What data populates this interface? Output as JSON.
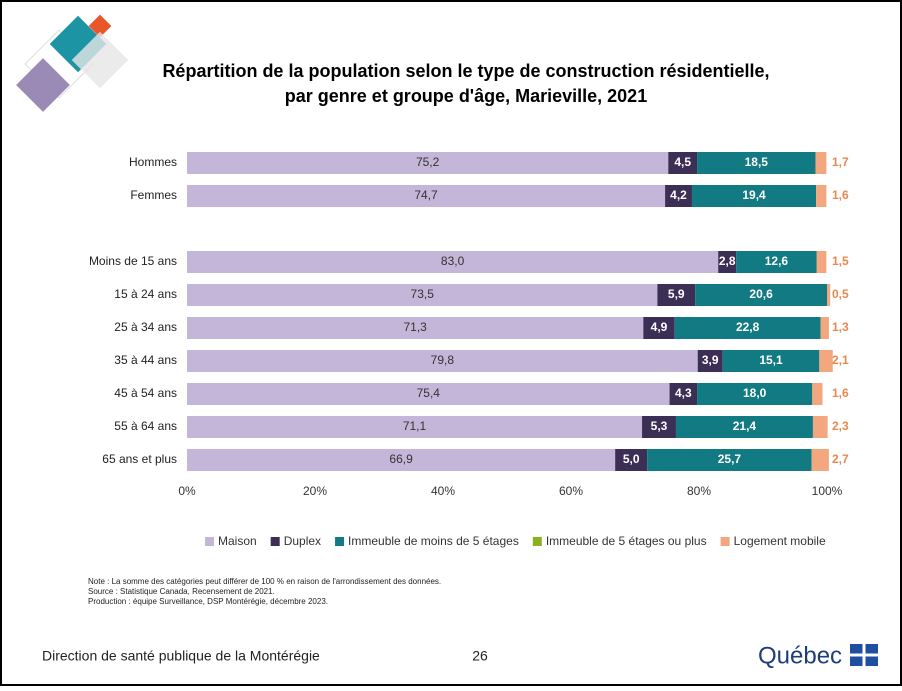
{
  "chart_data": {
    "type": "stacked-barh",
    "title": "Répartition de la population selon le type de construction résidentielle,",
    "subtitle": "par genre et groupe d'âge, Marieville, 2021",
    "categories": [
      "Hommes",
      "Femmes",
      null,
      "Moins de 15 ans",
      "15 à 24 ans",
      "25 à 34 ans",
      "35 à 44 ans",
      "45 à 54 ans",
      "55 à 64 ans",
      "65 ans et plus"
    ],
    "series": [
      {
        "name": "Maison",
        "color": "#c3b6d8",
        "values": [
          75.2,
          74.7,
          null,
          83.0,
          73.5,
          71.3,
          79.8,
          75.4,
          71.1,
          66.9
        ],
        "value_labels": [
          "75,2",
          "74,7",
          null,
          "83,0",
          "73,5",
          "71,3",
          "79,8",
          "75,4",
          "71,1",
          "66,9"
        ]
      },
      {
        "name": "Duplex",
        "color": "#3b2f55",
        "values": [
          4.5,
          4.2,
          null,
          2.8,
          5.9,
          4.9,
          3.9,
          4.3,
          5.3,
          5.0
        ],
        "value_labels": [
          "4,5",
          "4,2",
          null,
          "2,8",
          "5,9",
          "4,9",
          "3,9",
          "4,3",
          "5,3",
          "5,0"
        ]
      },
      {
        "name": "Immeuble de moins de 5 étages",
        "color": "#117a82",
        "values": [
          18.5,
          19.4,
          null,
          12.6,
          20.6,
          22.8,
          15.1,
          18.0,
          21.4,
          25.7
        ],
        "value_labels": [
          "18,5",
          "19,4",
          null,
          "12,6",
          "20,6",
          "22,8",
          "15,1",
          "18,0",
          "21,4",
          "25,7"
        ]
      },
      {
        "name": "Immeuble de 5 étages ou plus",
        "color": "#8cb023",
        "values": [
          0,
          0,
          null,
          0,
          0,
          0,
          0,
          0,
          0,
          0
        ]
      },
      {
        "name": "Logement mobile",
        "color": "#f3a77e",
        "values": [
          1.7,
          1.6,
          null,
          1.5,
          0.5,
          1.3,
          2.1,
          1.6,
          2.3,
          2.7
        ],
        "value_labels": [
          "1,7",
          "1,6",
          null,
          "1,5",
          "0,5",
          "1,3",
          "2,1",
          "1,6",
          "2,3",
          "2,7"
        ]
      }
    ],
    "xlim": [
      0,
      100
    ],
    "xticks": [
      {
        "value": 0,
        "label": "0%"
      },
      {
        "value": 20,
        "label": "20%"
      },
      {
        "value": 40,
        "label": "40%"
      },
      {
        "value": 60,
        "label": "60%"
      },
      {
        "value": 80,
        "label": "80%"
      },
      {
        "value": 100,
        "label": "100%"
      }
    ],
    "legend": "bottom"
  },
  "notes": [
    "Note : La somme des catégories peut différer de 100 % en raison de l'arrondissement des données.",
    "Source : Statistique Canada, Recensement de 2021.",
    "Production : équipe Surveillance, DSP Montérégie, décembre 2023."
  ],
  "footer": {
    "left": "Direction de santé publique de la Montérégie",
    "page": "26",
    "logo": "Québec"
  }
}
